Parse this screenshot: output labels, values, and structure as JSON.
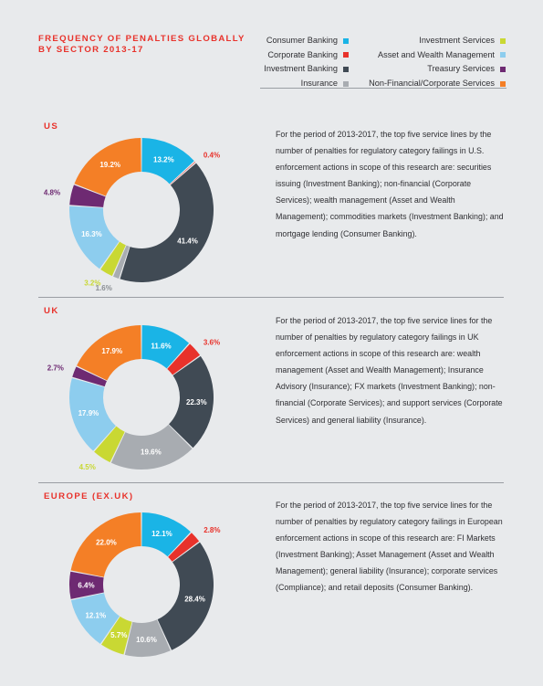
{
  "page": {
    "title_line1": "FREQUENCY OF PENALTIES GLOBALLY",
    "title_line2": "BY SECTOR 2013-17"
  },
  "legend": {
    "column1": [
      {
        "label": "Consumer Banking",
        "color": "#1ab4e6"
      },
      {
        "label": "Corporate Banking",
        "color": "#e8322b"
      },
      {
        "label": "Investment Banking",
        "color": "#404a54"
      },
      {
        "label": "Insurance",
        "color": "#a8acb1"
      }
    ],
    "column2": [
      {
        "label": "Investment Services",
        "color": "#c9d833"
      },
      {
        "label": "Asset and Wealth Management",
        "color": "#8dcdee"
      },
      {
        "label": "Treasury Services",
        "color": "#6e2a72"
      },
      {
        "label": "Non-Financial/Corporate Services",
        "color": "#f47f26"
      }
    ]
  },
  "sections": [
    {
      "heading": "US",
      "description": "For the period of 2013-2017, the top five service lines by the number of penalties for regulatory category failings in U.S. enforcement actions in scope of this research are: securities issuing (Investment Banking); non-financial (Corporate Services); wealth management (Asset and Wealth Management); commodities markets (Investment Banking); and mortgage lending (Consumer Banking)."
    },
    {
      "heading": "UK",
      "description": "For the period of 2013-2017, the top five service lines for the number of penalties by regulatory category failings in UK enforcement actions in scope of this research are: wealth management (Asset and Wealth Management); Insurance Advisory (Insurance); FX markets (Investment Banking); non-financial (Corporate Services); and support services (Corporate Services) and general liability (Insurance)."
    },
    {
      "heading": "EUROPE (EX.UK)",
      "description": "For the period of 2013-2017, the top five service lines for the number of penalties by regulatory category failings in European enforcement actions in scope of this research are: FI Markets (Investment Banking); Asset Management (Asset and Wealth Management); general liability (Insurance); corporate services (Compliance); and retail deposits (Consumer Banking)."
    }
  ],
  "chart_data": [
    {
      "type": "pie",
      "title": "US",
      "categories": [
        "Consumer Banking",
        "Corporate Banking",
        "Investment Banking",
        "Insurance",
        "Investment Services",
        "Asset and Wealth Management",
        "Treasury Services",
        "Non-Financial/Corporate Services"
      ],
      "values": [
        13.2,
        0.4,
        41.4,
        1.6,
        3.2,
        16.3,
        4.8,
        19.2
      ],
      "labels": [
        "13.2%",
        "0.4%",
        "41.4%",
        "1.6%",
        "3.2%",
        "16.3%",
        "4.8%",
        "19.2%"
      ]
    },
    {
      "type": "pie",
      "title": "UK",
      "categories": [
        "Consumer Banking",
        "Corporate Banking",
        "Investment Banking",
        "Insurance",
        "Investment Services",
        "Asset and Wealth Management",
        "Treasury Services",
        "Non-Financial/Corporate Services"
      ],
      "values": [
        11.6,
        3.6,
        22.3,
        19.6,
        4.5,
        17.9,
        2.7,
        17.9
      ],
      "labels": [
        "11.6%",
        "3.6%",
        "22.3%",
        "19.6%",
        "4.5%",
        "17.9%",
        "2.7%",
        "17.9%"
      ]
    },
    {
      "type": "pie",
      "title": "EUROPE (EX.UK)",
      "categories": [
        "Consumer Banking",
        "Corporate Banking",
        "Investment Banking",
        "Insurance",
        "Investment Services",
        "Asset and Wealth Management",
        "Treasury Services",
        "Non-Financial/Corporate Services"
      ],
      "values": [
        12.1,
        2.8,
        28.4,
        10.6,
        5.7,
        12.1,
        6.4,
        22.0
      ],
      "labels": [
        "12.1%",
        "2.8%",
        "28.4%",
        "10.6%",
        "5.7%",
        "12.1%",
        "6.4%",
        "22.0%"
      ]
    }
  ]
}
